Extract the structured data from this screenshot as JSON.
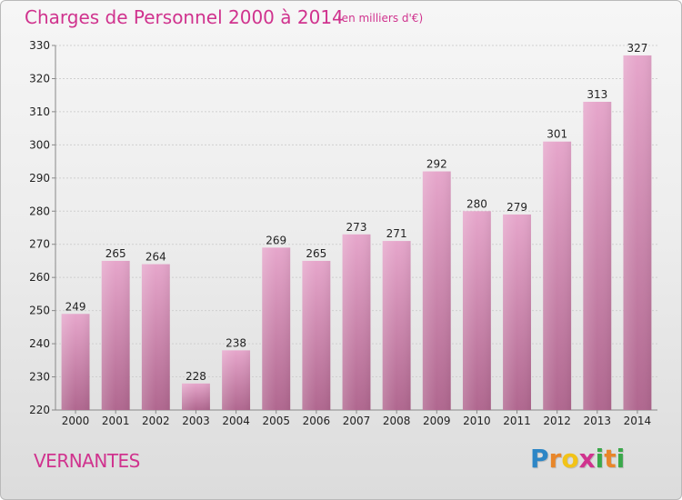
{
  "title": "Charges de Personnel 2000 à 2014",
  "unit_note": "(en milliers d'€)",
  "place_name": "VERNANTES",
  "logo": {
    "letters": [
      "P",
      "r",
      "o",
      "x",
      "i",
      "t",
      "i"
    ],
    "colors": [
      "#2d86c6",
      "#e8862a",
      "#f2c318",
      "#d0338e",
      "#3aa84a",
      "#e8862a",
      "#3aa84a"
    ]
  },
  "colors": {
    "title": "#d0338e",
    "bar_top": "#e6a6cb",
    "bar_bottom": "#b0678f",
    "axis_text": "#222222",
    "grid": "#cfcfcf"
  },
  "chart_data": {
    "type": "bar",
    "categories": [
      "2000",
      "2001",
      "2002",
      "2003",
      "2004",
      "2005",
      "2006",
      "2007",
      "2008",
      "2009",
      "2010",
      "2011",
      "2012",
      "2013",
      "2014"
    ],
    "values": [
      249,
      265,
      264,
      228,
      238,
      269,
      265,
      273,
      271,
      292,
      280,
      279,
      301,
      313,
      327
    ],
    "ylim": [
      220,
      330
    ],
    "yticks": [
      220,
      230,
      240,
      250,
      260,
      270,
      280,
      290,
      300,
      310,
      320,
      330
    ],
    "grid": true,
    "data_labels": true
  }
}
